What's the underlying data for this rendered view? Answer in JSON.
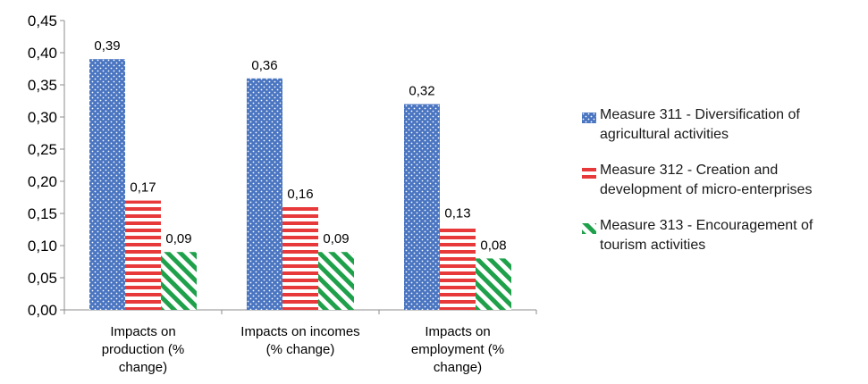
{
  "chart_data": {
    "type": "bar",
    "categories": [
      "Impacts on production (% change)",
      "Impacts on incomes (% change)",
      "Impacts on employment (% change)"
    ],
    "category_lines": [
      [
        "Impacts on",
        "production (%",
        "change)"
      ],
      [
        "Impacts on incomes",
        "(% change)"
      ],
      [
        "Impacts on",
        "employment (%",
        "change)"
      ]
    ],
    "series": [
      {
        "name": "Measure 311 - Diversification of agricultural activities",
        "values": [
          0.39,
          0.36,
          0.32
        ],
        "labels": [
          "0,39",
          "0,36",
          "0,32"
        ],
        "color": "#4a75c1",
        "pattern": "dots"
      },
      {
        "name": "Measure 312 - Creation and development of micro-enterprises",
        "values": [
          0.17,
          0.16,
          0.13
        ],
        "labels": [
          "0,17",
          "0,16",
          "0,13"
        ],
        "color": "#e8393a",
        "pattern": "horizontal-stripes"
      },
      {
        "name": "Measure 313 - Encouragement of tourism activities",
        "values": [
          0.09,
          0.09,
          0.08
        ],
        "labels": [
          "0,09",
          "0,09",
          "0,08"
        ],
        "color": "#1fa04a",
        "pattern": "diagonal-stripes"
      }
    ],
    "ylim": [
      0,
      0.45
    ],
    "yticks": [
      0,
      0.05,
      0.1,
      0.15,
      0.2,
      0.25,
      0.3,
      0.35,
      0.4,
      0.45
    ],
    "ytick_labels": [
      "0,00",
      "0,05",
      "0,10",
      "0,15",
      "0,20",
      "0,25",
      "0,30",
      "0,35",
      "0,40",
      "0,45"
    ],
    "title": "",
    "xlabel": "",
    "ylabel": "",
    "grid": false,
    "legend_position": "right"
  },
  "legend": {
    "items": [
      {
        "line1": "Measure 311 - Diversification of",
        "line2": "agricultural activities"
      },
      {
        "line1": "Measure 312 - Creation and",
        "line2": "development of micro-enterprises"
      },
      {
        "line1": "Measure 313 - Encouragement of",
        "line2": "tourism activities"
      }
    ]
  }
}
